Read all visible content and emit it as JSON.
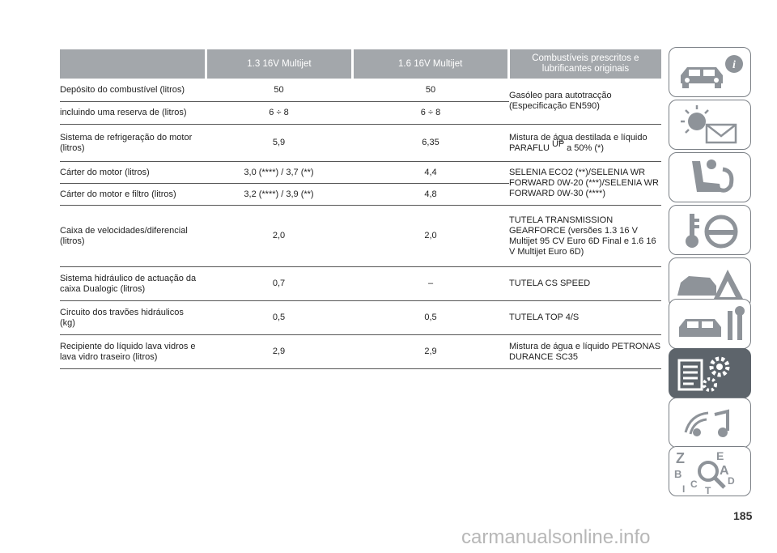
{
  "table": {
    "headers": [
      "1.3 16V Multijet",
      "1.6 16V Multijet",
      "Combustíveis prescritos e lubrificantes originais"
    ],
    "fuel": {
      "rows": [
        {
          "label": "Depósito do combustível (litros)",
          "v1": "50",
          "v2": "50"
        },
        {
          "label": "incluindo uma reserva de (litros)",
          "v1": "6 ÷ 8",
          "v2": "6 ÷ 8"
        }
      ],
      "product": "Gasóleo para autotracção (Especificação EN590)"
    },
    "cooling": {
      "label": "Sistema de refrigeração do motor (litros)",
      "v1": "5,9",
      "v2": "6,35",
      "product_a": "Mistura de água destilada e líquido PARAFLU",
      "product_sup": "UP",
      "product_b": " a 50% (*)"
    },
    "engine": {
      "rows": [
        {
          "label": "Cárter do motor (litros)",
          "v1": "3,0 (****) / 3,7 (**)",
          "v2": "4,4"
        },
        {
          "label": "Cárter do motor e filtro (litros)",
          "v1": "3,2 (****) / 3,9 (**)",
          "v2": "4,8"
        }
      ],
      "product": "SELENIA ECO2 (**)/SELENIA WR FORWARD 0W-20 (***)/SELENIA WR FORWARD 0W-30 (****)"
    },
    "rows": [
      {
        "label": "Caixa de velocidades/diferencial (litros)",
        "v1": "2,0",
        "v2": "2,0",
        "product": "TUTELA TRANSMISSION GEARFORCE (versões 1.3 16 V Multijet 95 CV Euro 6D Final e 1.6 16 V Multijet Euro 6D)"
      },
      {
        "label": "Sistema hidráulico de actuação da caixa Dualogic (litros)",
        "v1": "0,7",
        "v2": "–",
        "product": "TUTELA CS SPEED"
      },
      {
        "label": "Circuito dos travões hidráulicos (kg)",
        "v1": "0,5",
        "v2": "0,5",
        "product": "TUTELA TOP 4/S"
      },
      {
        "label": "Recipiente do líquido lava vidros e lava vidro traseiro (litros)",
        "v1": "2,9",
        "v2": "2,9",
        "product": "Mistura de água e líquido PETRONAS DURANCE SC35"
      }
    ]
  },
  "side_tabs": [
    {
      "icon": "car-info-icon",
      "active": false
    },
    {
      "icon": "warning-lights-message-icon",
      "active": false
    },
    {
      "icon": "airbag-seat-icon",
      "active": false
    },
    {
      "icon": "key-steering-wheel-icon",
      "active": false
    },
    {
      "icon": "car-breakdown-warning-icon",
      "active": false
    },
    {
      "icon": "car-maintenance-tools-icon",
      "active": false
    },
    {
      "icon": "technical-data-gear-icon",
      "active": true
    },
    {
      "icon": "multimedia-icon",
      "active": false
    },
    {
      "icon": "index-search-icon",
      "active": false
    }
  ],
  "index_letters": [
    "Z",
    "E",
    "B",
    "A",
    "C",
    "D",
    "T",
    "I"
  ],
  "page_number": "185",
  "watermark": "carmanualsonline.info"
}
